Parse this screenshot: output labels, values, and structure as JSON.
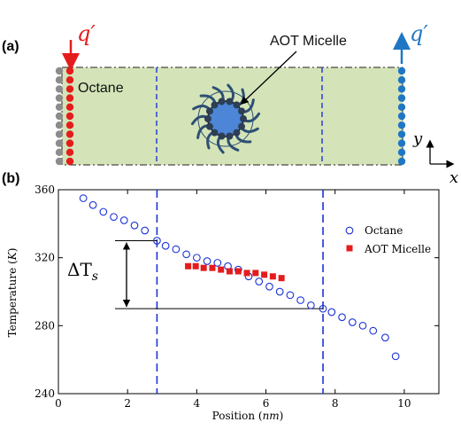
{
  "panel_a": {
    "label": "(a)",
    "region_label": "Octane",
    "micelle_label": "AOT Micelle",
    "heat_in": {
      "symbol": "q",
      "prime": "′",
      "color": "#e51c1c"
    },
    "heat_out": {
      "symbol": "q",
      "prime": "′",
      "color": "#1f77c4"
    },
    "axes": {
      "y": "y",
      "x": "x"
    },
    "colors": {
      "box_fill": "#d4e4b8",
      "left_wall_red": "#e51c1c",
      "left_wall_grey": "#8c8c8c",
      "right_wall_blue": "#1f77c4",
      "divider": "#1a33d6",
      "micelle_core": "#4d86d6",
      "micelle_tail": "#2d4f73"
    }
  },
  "panel_b": {
    "label": "(b)",
    "delta_label": "ΔT",
    "delta_sub": "s"
  },
  "chart_data": {
    "type": "scatter",
    "xlabel": "Position (nm)",
    "xlabel_text": "Position (",
    "xlabel_unit": "nm",
    "xlabel_close": ")",
    "ylabel_text": "Temperature (",
    "ylabel_unit": "K",
    "ylabel_close": ")",
    "xlim": [
      0,
      11
    ],
    "ylim": [
      240,
      360
    ],
    "xticks": [
      0,
      2,
      4,
      6,
      8,
      10
    ],
    "yticks": [
      240,
      280,
      320,
      360
    ],
    "vlines": [
      2.85,
      7.65
    ],
    "legend_position": "top-right",
    "series": [
      {
        "name": "Octane",
        "marker": "open-circle",
        "color": "#1a33d6",
        "x": [
          0.72,
          1.0,
          1.3,
          1.6,
          1.9,
          2.2,
          2.5,
          2.85,
          3.1,
          3.4,
          3.7,
          4.0,
          4.3,
          4.6,
          4.9,
          5.2,
          5.5,
          5.8,
          6.1,
          6.4,
          6.7,
          7.0,
          7.3,
          7.65,
          7.9,
          8.2,
          8.5,
          8.8,
          9.1,
          9.45,
          9.75
        ],
        "y": [
          355,
          351,
          347,
          344,
          342,
          339,
          336,
          330,
          327,
          325,
          322,
          320,
          318,
          317,
          315,
          313,
          309,
          306,
          303,
          300,
          298,
          295,
          292,
          290,
          288,
          285,
          282,
          280,
          277,
          273,
          262
        ]
      },
      {
        "name": "AOT Micelle",
        "marker": "filled-square",
        "color": "#e51c1c",
        "x": [
          3.75,
          3.97,
          4.2,
          4.45,
          4.7,
          4.95,
          5.2,
          5.45,
          5.7,
          5.95,
          6.2,
          6.45
        ],
        "y": [
          315,
          315,
          314,
          314,
          313,
          312,
          312,
          311,
          311,
          310,
          309,
          308
        ]
      }
    ],
    "annotation": {
      "upper": 330,
      "lower": 290
    }
  }
}
